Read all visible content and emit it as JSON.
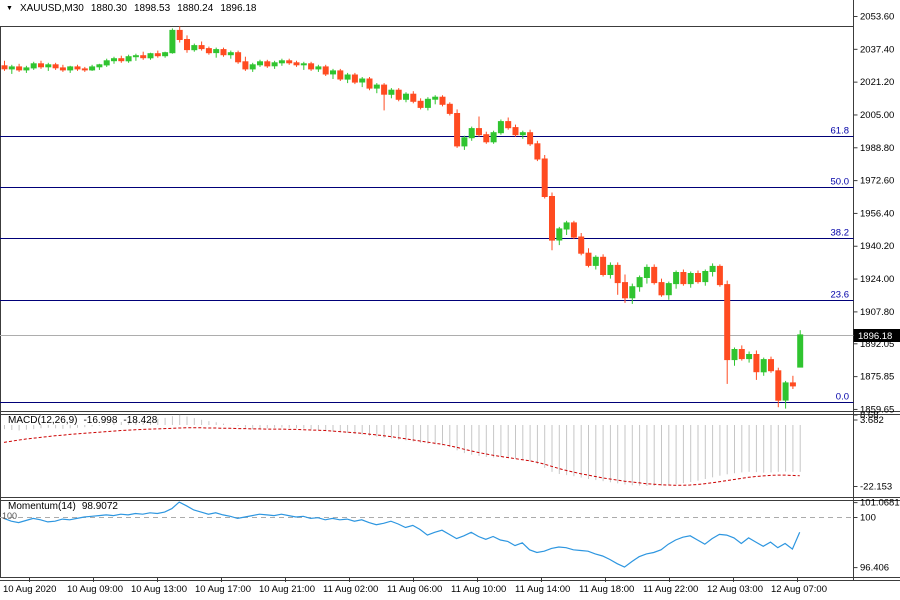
{
  "header": {
    "symbol": "XAUUSD,M30",
    "open": "1880.30",
    "high": "1898.53",
    "low": "1880.24",
    "close": "1896.18"
  },
  "colors": {
    "bull": "#30C430",
    "bear": "#FF4B21",
    "fib_line": "#000078",
    "fib_label": "#0000A8",
    "frame": "#3c3c3c",
    "histogram": "#C6C6C6",
    "signal": "#CC0000",
    "momentum": "#2D96E0",
    "last_price_line": "#ADADAD",
    "level_dash": "#ABABAB",
    "badge_bg": "#000000",
    "badge_text": "#FFFFFF"
  },
  "chart_data": {
    "type": "candlestick",
    "symbol": "XAUUSD",
    "timeframe": "M30",
    "price_axis": {
      "ticks": [
        {
          "label": "2053.60",
          "price": 2053.6
        },
        {
          "label": "2037.40",
          "price": 2037.4
        },
        {
          "label": "2021.20",
          "price": 2021.2
        },
        {
          "label": "2005.00",
          "price": 2005.0
        },
        {
          "label": "1988.80",
          "price": 1988.8
        },
        {
          "label": "1972.60",
          "price": 1972.6
        },
        {
          "label": "1956.40",
          "price": 1956.4
        },
        {
          "label": "1940.20",
          "price": 1940.2
        },
        {
          "label": "1924.00",
          "price": 1924.0
        },
        {
          "label": "1907.80",
          "price": 1907.8
        },
        {
          "label": "1892.05",
          "price": 1892.05
        },
        {
          "label": "1875.85",
          "price": 1875.85
        },
        {
          "label": "1859.65",
          "price": 1859.65
        }
      ],
      "last_price": {
        "label": "1896.18",
        "price": 1896.18
      }
    },
    "fib_levels": [
      {
        "label": "61.8",
        "price": 1994.3
      },
      {
        "label": "50.0",
        "price": 1969.2
      },
      {
        "label": "38.2",
        "price": 1944.2
      },
      {
        "label": "23.6",
        "price": 1913.2
      },
      {
        "label": "0.0",
        "price": 1863.1
      }
    ],
    "time_labels": [
      "10 Aug 2020",
      "10 Aug 09:00",
      "10 Aug 13:00",
      "10 Aug 17:00",
      "10 Aug 21:00",
      "11 Aug 02:00",
      "11 Aug 06:00",
      "11 Aug 10:00",
      "11 Aug 14:00",
      "11 Aug 18:00",
      "11 Aug 22:00",
      "12 Aug 03:00",
      "12 Aug 07:00"
    ],
    "ohlc": [
      [
        2029.0,
        2031.5,
        2026.5,
        2027.5
      ],
      [
        2027.5,
        2029.5,
        2025.0,
        2028.5
      ],
      [
        2028.5,
        2030.0,
        2026.0,
        2027.0
      ],
      [
        2027.0,
        2029.0,
        2025.5,
        2028.0
      ],
      [
        2028.0,
        2031.0,
        2027.0,
        2030.0
      ],
      [
        2030.0,
        2031.5,
        2027.5,
        2028.5
      ],
      [
        2028.5,
        2030.5,
        2026.5,
        2029.5
      ],
      [
        2029.5,
        2030.5,
        2027.0,
        2028.0
      ],
      [
        2028.0,
        2029.5,
        2026.0,
        2027.0
      ],
      [
        2027.0,
        2029.0,
        2025.5,
        2028.5
      ],
      [
        2028.5,
        2029.5,
        2026.5,
        2027.5
      ],
      [
        2027.5,
        2028.5,
        2026.0,
        2027.0
      ],
      [
        2027.0,
        2029.5,
        2026.5,
        2028.5
      ],
      [
        2028.5,
        2030.0,
        2027.0,
        2029.5
      ],
      [
        2029.5,
        2032.5,
        2028.5,
        2031.5
      ],
      [
        2031.5,
        2033.5,
        2030.0,
        2032.5
      ],
      [
        2032.5,
        2034.0,
        2030.5,
        2031.5
      ],
      [
        2031.5,
        2034.5,
        2030.5,
        2033.5
      ],
      [
        2033.5,
        2035.0,
        2031.5,
        2034.0
      ],
      [
        2034.0,
        2036.0,
        2032.0,
        2033.0
      ],
      [
        2033.0,
        2035.5,
        2032.0,
        2035.0
      ],
      [
        2035.0,
        2036.5,
        2033.0,
        2034.0
      ],
      [
        2034.0,
        2036.0,
        2033.0,
        2035.5
      ],
      [
        2035.5,
        2047.5,
        2035.0,
        2046.5
      ],
      [
        2046.5,
        2048.5,
        2040.5,
        2042.0
      ],
      [
        2042.0,
        2044.0,
        2035.5,
        2037.0
      ],
      [
        2037.0,
        2040.0,
        2036.0,
        2039.0
      ],
      [
        2039.0,
        2041.0,
        2036.5,
        2037.5
      ],
      [
        2037.5,
        2038.5,
        2034.5,
        2035.5
      ],
      [
        2035.5,
        2038.0,
        2033.0,
        2037.0
      ],
      [
        2037.0,
        2038.0,
        2033.5,
        2034.5
      ],
      [
        2034.5,
        2036.5,
        2032.5,
        2035.5
      ],
      [
        2035.5,
        2036.5,
        2030.0,
        2031.0
      ],
      [
        2031.0,
        2033.5,
        2026.5,
        2027.5
      ],
      [
        2027.5,
        2030.5,
        2026.0,
        2029.5
      ],
      [
        2029.5,
        2032.0,
        2028.5,
        2031.0
      ],
      [
        2031.0,
        2032.0,
        2028.0,
        2029.0
      ],
      [
        2029.0,
        2031.5,
        2027.5,
        2030.5
      ],
      [
        2030.5,
        2032.5,
        2029.0,
        2031.5
      ],
      [
        2031.5,
        2032.5,
        2029.5,
        2030.5
      ],
      [
        2030.5,
        2031.5,
        2028.5,
        2029.5
      ],
      [
        2029.5,
        2031.0,
        2027.0,
        2030.0
      ],
      [
        2030.0,
        2031.0,
        2026.5,
        2027.5
      ],
      [
        2027.5,
        2029.5,
        2026.0,
        2028.5
      ],
      [
        2028.5,
        2029.5,
        2024.0,
        2025.0
      ],
      [
        2025.0,
        2027.5,
        2022.5,
        2026.5
      ],
      [
        2026.5,
        2027.5,
        2021.5,
        2022.5
      ],
      [
        2022.5,
        2025.5,
        2020.5,
        2024.5
      ],
      [
        2024.5,
        2025.5,
        2020.0,
        2021.0
      ],
      [
        2021.0,
        2023.5,
        2018.5,
        2022.5
      ],
      [
        2022.5,
        2023.5,
        2017.0,
        2018.0
      ],
      [
        2018.0,
        2020.5,
        2015.5,
        2019.5
      ],
      [
        2019.5,
        2020.5,
        2007.0,
        2015.0
      ],
      [
        2015.0,
        2018.0,
        2013.0,
        2017.0
      ],
      [
        2017.0,
        2018.0,
        2011.5,
        2012.5
      ],
      [
        2012.5,
        2016.0,
        2011.0,
        2015.0
      ],
      [
        2015.0,
        2016.5,
        2010.5,
        2011.5
      ],
      [
        2011.5,
        2013.0,
        2007.5,
        2008.5
      ],
      [
        2008.5,
        2013.5,
        2007.0,
        2012.5
      ],
      [
        2012.5,
        2014.5,
        2010.0,
        2013.5
      ],
      [
        2013.5,
        2014.5,
        2009.0,
        2010.0
      ],
      [
        2010.0,
        2011.0,
        2004.5,
        2005.5
      ],
      [
        2005.5,
        2007.5,
        1988.5,
        1989.5
      ],
      [
        1989.5,
        1994.5,
        1987.5,
        1993.5
      ],
      [
        1993.5,
        1999.0,
        1992.0,
        1998.0
      ],
      [
        1998.0,
        2004.0,
        1994.0,
        1995.0
      ],
      [
        1995.0,
        1996.5,
        1990.5,
        1991.5
      ],
      [
        1991.5,
        1997.0,
        1990.5,
        1996.0
      ],
      [
        1996.0,
        2002.5,
        1995.0,
        2001.5
      ],
      [
        2001.5,
        2003.5,
        1997.5,
        1998.5
      ],
      [
        1998.5,
        2000.0,
        1994.0,
        1995.0
      ],
      [
        1995.0,
        1997.0,
        1993.0,
        1996.0
      ],
      [
        1996.0,
        1997.5,
        1989.5,
        1990.5
      ],
      [
        1990.5,
        1992.0,
        1982.0,
        1983.0
      ],
      [
        1983.0,
        1985.0,
        1963.5,
        1964.5
      ],
      [
        1964.5,
        1966.5,
        1938.0,
        1943.0
      ],
      [
        1943.0,
        1949.5,
        1940.5,
        1948.5
      ],
      [
        1948.5,
        1952.5,
        1945.5,
        1951.5
      ],
      [
        1951.5,
        1952.5,
        1943.5,
        1944.5
      ],
      [
        1944.5,
        1946.5,
        1935.5,
        1936.5
      ],
      [
        1936.5,
        1939.0,
        1929.5,
        1930.5
      ],
      [
        1930.5,
        1935.5,
        1928.5,
        1934.5
      ],
      [
        1934.5,
        1936.0,
        1925.0,
        1926.0
      ],
      [
        1926.0,
        1932.0,
        1924.0,
        1930.5
      ],
      [
        1930.5,
        1932.0,
        1916.0,
        1922.0
      ],
      [
        1922.0,
        1926.0,
        1912.0,
        1914.5
      ],
      [
        1914.5,
        1921.5,
        1911.5,
        1920.0
      ],
      [
        1920.0,
        1925.5,
        1917.5,
        1924.5
      ],
      [
        1924.5,
        1931.0,
        1921.5,
        1929.5
      ],
      [
        1929.5,
        1931.0,
        1921.0,
        1922.0
      ],
      [
        1922.0,
        1924.0,
        1915.0,
        1916.0
      ],
      [
        1916.0,
        1922.5,
        1913.5,
        1921.5
      ],
      [
        1921.5,
        1928.0,
        1919.0,
        1927.0
      ],
      [
        1927.0,
        1928.5,
        1920.5,
        1921.5
      ],
      [
        1921.5,
        1927.5,
        1919.5,
        1926.5
      ],
      [
        1926.5,
        1928.0,
        1921.5,
        1922.5
      ],
      [
        1922.5,
        1928.5,
        1920.5,
        1927.5
      ],
      [
        1927.5,
        1931.5,
        1925.0,
        1930.0
      ],
      [
        1930.0,
        1931.0,
        1920.0,
        1921.0
      ],
      [
        1921.0,
        1923.0,
        1872.0,
        1884.0
      ],
      [
        1884.0,
        1890.0,
        1881.0,
        1889.0
      ],
      [
        1889.0,
        1891.0,
        1883.5,
        1884.5
      ],
      [
        1884.5,
        1888.0,
        1882.5,
        1886.5
      ],
      [
        1886.5,
        1888.5,
        1874.0,
        1878.0
      ],
      [
        1878.0,
        1885.0,
        1876.0,
        1884.0
      ],
      [
        1884.0,
        1885.5,
        1877.5,
        1878.5
      ],
      [
        1878.5,
        1880.0,
        1860.5,
        1864.0
      ],
      [
        1864.0,
        1873.5,
        1859.8,
        1872.5
      ],
      [
        1872.5,
        1876.0,
        1869.5,
        1871.0
      ],
      [
        1880.3,
        1898.53,
        1880.24,
        1896.18
      ]
    ],
    "indicators": {
      "macd": {
        "label": "MACD(12,26,9)",
        "value_main": "-16.998",
        "value_signal": "-18.428",
        "scale_ticks": [
          "8.68",
          "3.682",
          "-22.153"
        ],
        "histogram": [
          -1.5,
          -1.8,
          -2.0,
          -1.7,
          -1.5,
          -1.2,
          -1.0,
          -1.2,
          -1.4,
          -1.2,
          -1.0,
          -0.8,
          -0.5,
          -0.2,
          0.3,
          0.7,
          1.1,
          1.5,
          1.8,
          1.6,
          1.9,
          2.2,
          2.6,
          3.2,
          3.682,
          3.1,
          2.5,
          1.9,
          1.4,
          1.0,
          0.5,
          0.1,
          -0.4,
          -1.0,
          -1.5,
          -1.4,
          -1.2,
          -1.0,
          -0.9,
          -1.0,
          -1.2,
          -1.3,
          -1.6,
          -1.8,
          -2.2,
          -2.4,
          -2.7,
          -2.9,
          -3.2,
          -3.5,
          -3.9,
          -4.2,
          -4.6,
          -4.9,
          -5.3,
          -5.6,
          -6.0,
          -6.5,
          -6.8,
          -7.0,
          -7.4,
          -8.0,
          -9.2,
          -10.2,
          -10.8,
          -11.2,
          -11.6,
          -11.8,
          -11.6,
          -11.9,
          -12.3,
          -12.6,
          -13.2,
          -14.2,
          -15.6,
          -17.0,
          -17.8,
          -18.2,
          -18.6,
          -19.1,
          -19.6,
          -20.0,
          -20.4,
          -20.8,
          -21.2,
          -21.6,
          -21.9,
          -22.05,
          -22.153,
          -22.1,
          -22.0,
          -21.8,
          -21.5,
          -21.1,
          -20.7,
          -20.2,
          -19.6,
          -19.0,
          -18.4,
          -17.9,
          -17.5,
          -17.2,
          -17.0,
          -17.1,
          -17.3,
          -17.2,
          -17.0,
          -16.9,
          -17.0,
          -16.998
        ],
        "signal": [
          -6.3,
          -5.9,
          -5.5,
          -5.1,
          -4.8,
          -4.5,
          -4.2,
          -3.9,
          -3.7,
          -3.4,
          -3.2,
          -3.0,
          -2.8,
          -2.6,
          -2.4,
          -2.2,
          -2.0,
          -1.9,
          -1.7,
          -1.6,
          -1.5,
          -1.4,
          -1.3,
          -1.2,
          -1.1,
          -1.0,
          -1.0,
          -1.0,
          -1.1,
          -1.1,
          -1.2,
          -1.2,
          -1.3,
          -1.3,
          -1.4,
          -1.4,
          -1.5,
          -1.5,
          -1.5,
          -1.6,
          -1.6,
          -1.7,
          -1.8,
          -1.9,
          -2.0,
          -2.2,
          -2.4,
          -2.6,
          -2.8,
          -3.0,
          -3.3,
          -3.6,
          -3.9,
          -4.2,
          -4.6,
          -5.0,
          -5.4,
          -5.8,
          -6.2,
          -6.6,
          -7.0,
          -7.5,
          -8.1,
          -8.8,
          -9.4,
          -10.0,
          -10.5,
          -11.0,
          -11.4,
          -11.8,
          -12.2,
          -12.6,
          -13.0,
          -13.5,
          -14.2,
          -15.0,
          -15.8,
          -16.5,
          -17.1,
          -17.7,
          -18.2,
          -18.7,
          -19.2,
          -19.6,
          -20.0,
          -20.4,
          -20.7,
          -21.0,
          -21.3,
          -21.5,
          -21.7,
          -21.8,
          -21.9,
          -21.9,
          -21.8,
          -21.6,
          -21.3,
          -21.0,
          -20.6,
          -20.2,
          -19.8,
          -19.4,
          -19.0,
          -18.7,
          -18.5,
          -18.3,
          -18.2,
          -18.2,
          -18.3,
          -18.428
        ]
      },
      "momentum": {
        "label": "Momentum(14)",
        "value": "98.9072",
        "level_label": "100",
        "scale_ticks": [
          "101.0681",
          "100",
          "96.406"
        ],
        "values": [
          99.9,
          99.7,
          99.6,
          99.75,
          99.9,
          99.8,
          99.65,
          99.7,
          99.85,
          99.8,
          99.9,
          100.0,
          100.05,
          100.1,
          100.15,
          100.1,
          100.2,
          100.15,
          100.25,
          100.2,
          100.3,
          100.25,
          100.35,
          100.6,
          101.0681,
          100.8,
          100.5,
          100.35,
          100.2,
          100.3,
          100.15,
          100.05,
          99.9,
          100.0,
          100.1,
          100.2,
          100.15,
          100.1,
          100.2,
          100.1,
          100.0,
          100.05,
          99.9,
          99.95,
          99.8,
          99.9,
          99.8,
          99.85,
          99.7,
          99.8,
          99.6,
          99.45,
          99.55,
          99.7,
          99.5,
          99.25,
          99.4,
          99.1,
          98.7,
          98.9,
          99.05,
          98.75,
          98.45,
          98.65,
          98.9,
          98.6,
          98.4,
          98.6,
          98.35,
          98.25,
          97.95,
          98.15,
          97.65,
          97.45,
          97.55,
          97.75,
          97.85,
          97.8,
          97.65,
          97.6,
          97.55,
          97.35,
          97.2,
          96.95,
          96.65,
          96.406,
          96.8,
          97.15,
          97.35,
          97.45,
          97.65,
          98.05,
          98.35,
          98.55,
          98.65,
          98.35,
          98.05,
          98.45,
          98.75,
          98.7,
          98.5,
          98.1,
          98.5,
          98.2,
          97.9,
          98.2,
          97.8,
          98.1,
          97.7,
          98.9072
        ]
      }
    }
  }
}
